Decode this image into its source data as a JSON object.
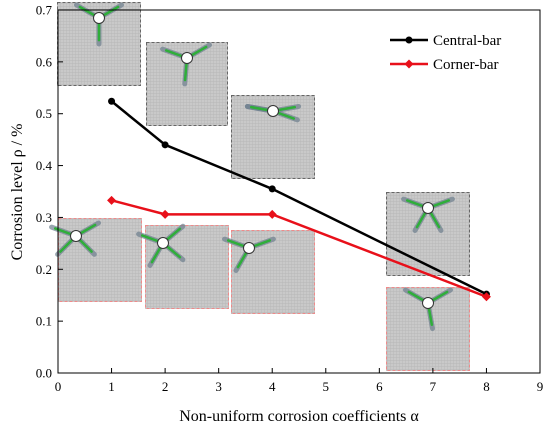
{
  "chart_data": {
    "type": "line",
    "xlabel": "Non-uniform corrosion coefficients α",
    "ylabel": "Corrosion level ρ / %",
    "xlim": [
      0,
      9
    ],
    "ylim": [
      0.0,
      0.7
    ],
    "xticks": [
      "0",
      "1",
      "2",
      "3",
      "4",
      "5",
      "6",
      "7",
      "8",
      "9"
    ],
    "yticks": [
      "0.0",
      "0.1",
      "0.2",
      "0.3",
      "0.4",
      "0.5",
      "0.6",
      "0.7"
    ],
    "grid": false,
    "legend_position": "top-right",
    "series": [
      {
        "name": "Central-bar",
        "color": "#000000",
        "marker": "circle",
        "x": [
          1,
          2,
          4,
          8
        ],
        "y": [
          0.524,
          0.44,
          0.355,
          0.152
        ]
      },
      {
        "name": "Corner-bar",
        "color": "#e8101a",
        "marker": "diamond",
        "x": [
          1,
          2,
          4,
          8
        ],
        "y": [
          0.333,
          0.306,
          0.306,
          0.147
        ]
      }
    ],
    "insets": [
      {
        "group": "central",
        "position": "top",
        "rays": [
          -150,
          -30,
          90
        ]
      },
      {
        "group": "central",
        "position": "top",
        "rays": [
          -160,
          -30,
          95
        ]
      },
      {
        "group": "central",
        "position": "top",
        "rays": [
          -170,
          -10,
          20,
          190
        ]
      },
      {
        "group": "central",
        "position": "top",
        "rays": [
          -160,
          -20,
          60,
          120
        ]
      },
      {
        "group": "corner",
        "position": "left",
        "rays": [
          -30,
          45,
          135,
          200
        ]
      },
      {
        "group": "corner",
        "position": "left",
        "rays": [
          -40,
          40,
          120,
          200
        ]
      },
      {
        "group": "corner",
        "position": "left",
        "rays": [
          -20,
          200,
          120
        ]
      },
      {
        "group": "corner",
        "position": "top",
        "rays": [
          -30,
          -150,
          80
        ]
      }
    ]
  }
}
